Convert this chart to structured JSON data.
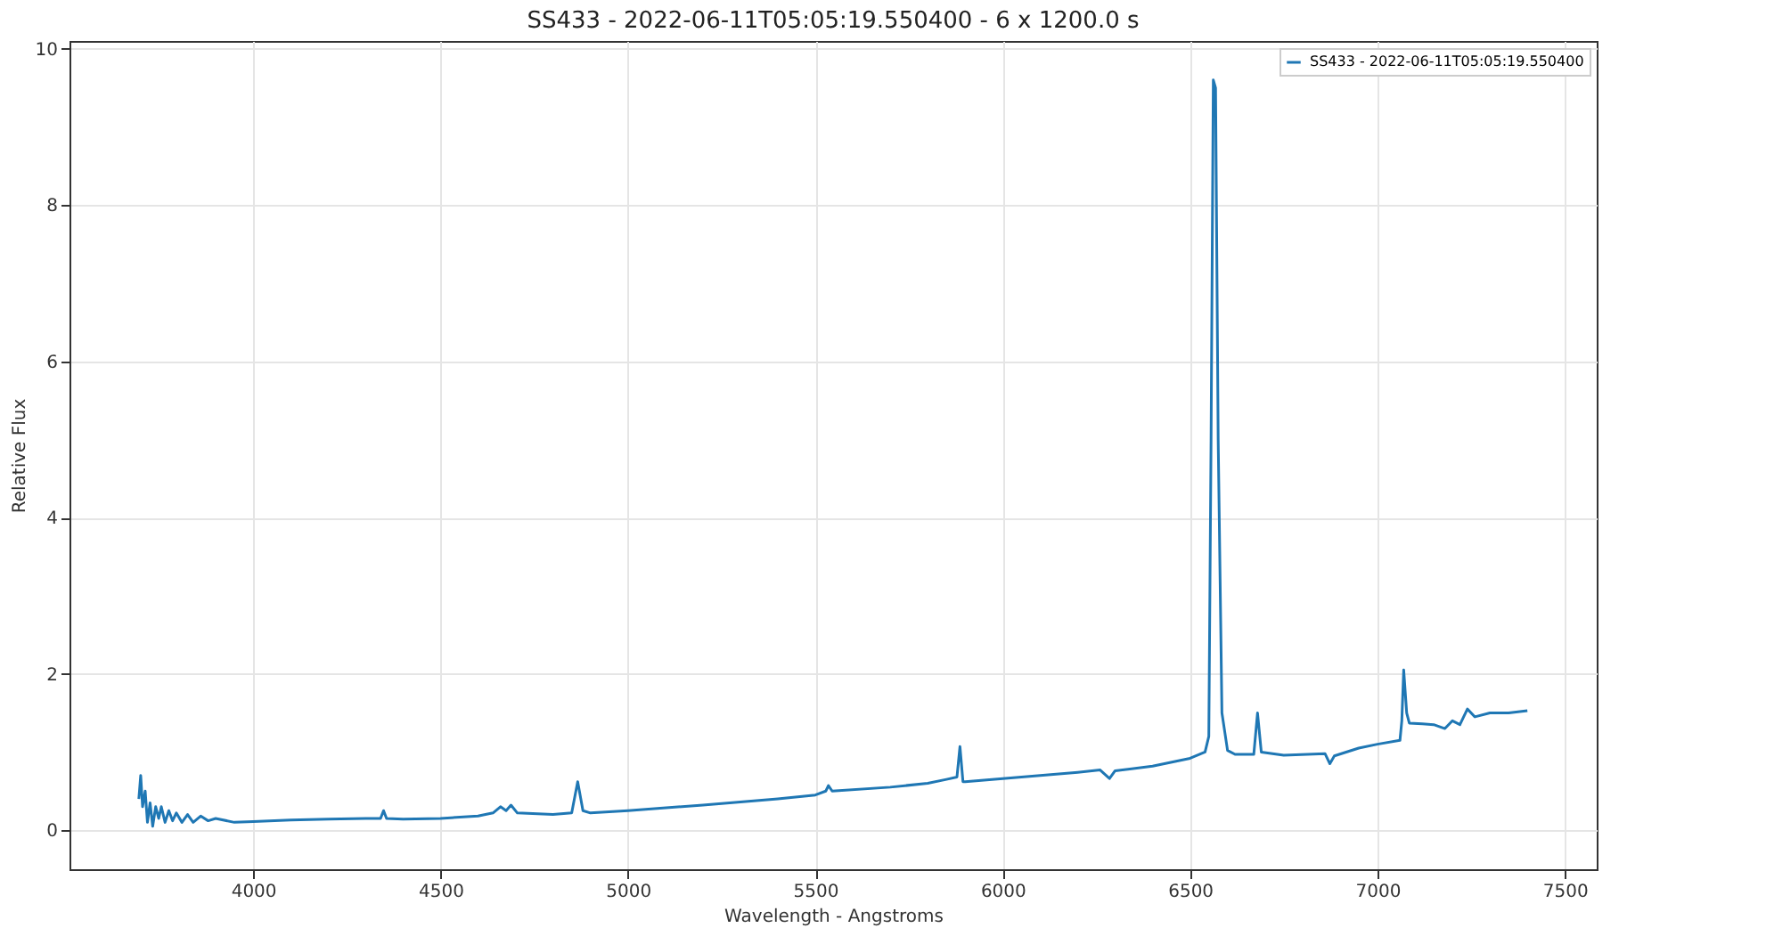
{
  "chart_data": {
    "type": "line",
    "title": "SS433 - 2022-06-11T05:05:19.550400 - 6 x 1200.0 s",
    "xlabel": "Wavelength - Angstroms",
    "ylabel": "Relative Flux",
    "xlim": [
      3510,
      7585
    ],
    "xticks": [
      4000,
      4500,
      5000,
      5500,
      6000,
      6500,
      7000,
      7500
    ],
    "ylim": [
      -0.5,
      10.1
    ],
    "yticks": [
      0,
      2,
      4,
      6,
      8,
      10
    ],
    "grid": true,
    "legend": "top right",
    "line_style": "solid",
    "series": [
      {
        "name": "SS433 - 2022-06-11T05:05:19.550400",
        "color": "#1f77b4",
        "x": [
          3695,
          3700,
          3705,
          3712,
          3718,
          3725,
          3732,
          3740,
          3748,
          3755,
          3765,
          3775,
          3785,
          3795,
          3810,
          3825,
          3840,
          3860,
          3880,
          3900,
          3950,
          4000,
          4100,
          4200,
          4300,
          4340,
          4348,
          4356,
          4400,
          4500,
          4600,
          4640,
          4660,
          4675,
          4688,
          4705,
          4800,
          4850,
          4866,
          4880,
          4900,
          5000,
          5200,
          5400,
          5500,
          5528,
          5535,
          5545,
          5700,
          5800,
          5850,
          5878,
          5886,
          5894,
          5900,
          6000,
          6100,
          6200,
          6260,
          6285,
          6300,
          6400,
          6500,
          6540,
          6550,
          6556,
          6562,
          6568,
          6575,
          6585,
          6600,
          6620,
          6670,
          6680,
          6690,
          6750,
          6860,
          6873,
          6885,
          6950,
          7000,
          7060,
          7065,
          7070,
          7078,
          7085,
          7120,
          7150,
          7180,
          7200,
          7220,
          7240,
          7260,
          7300,
          7350,
          7400
        ],
        "values": [
          0.4,
          0.7,
          0.3,
          0.5,
          0.1,
          0.35,
          0.05,
          0.3,
          0.15,
          0.3,
          0.1,
          0.25,
          0.12,
          0.22,
          0.1,
          0.2,
          0.1,
          0.18,
          0.12,
          0.15,
          0.1,
          0.11,
          0.13,
          0.14,
          0.15,
          0.15,
          0.25,
          0.15,
          0.14,
          0.15,
          0.18,
          0.22,
          0.3,
          0.25,
          0.32,
          0.22,
          0.2,
          0.22,
          0.62,
          0.25,
          0.22,
          0.25,
          0.32,
          0.4,
          0.45,
          0.5,
          0.57,
          0.5,
          0.55,
          0.6,
          0.65,
          0.68,
          1.07,
          0.62,
          0.62,
          0.66,
          0.7,
          0.74,
          0.77,
          0.66,
          0.76,
          0.82,
          0.92,
          1.0,
          1.2,
          5,
          9.6,
          9.5,
          5,
          1.5,
          1.02,
          0.97,
          0.97,
          1.5,
          1.0,
          0.96,
          0.98,
          0.85,
          0.95,
          1.05,
          1.1,
          1.15,
          1.4,
          2.05,
          1.5,
          1.37,
          1.36,
          1.35,
          1.3,
          1.4,
          1.35,
          1.55,
          1.45,
          1.5,
          1.5,
          1.53
        ]
      }
    ]
  }
}
